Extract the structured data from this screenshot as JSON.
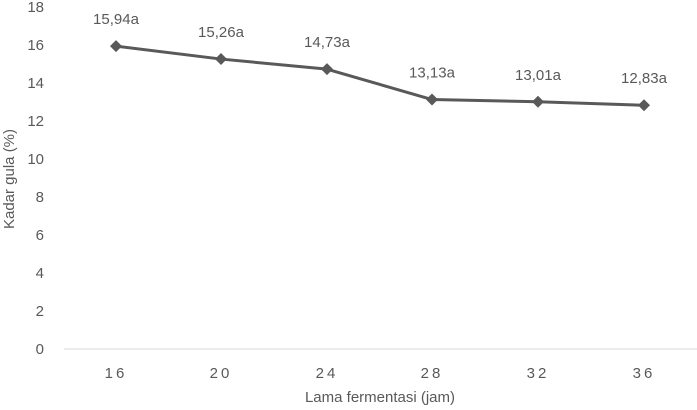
{
  "chart_data": {
    "type": "line",
    "title": "",
    "xlabel": "Lama fermentasi (jam)",
    "ylabel": "Kadar gula (%)",
    "categories": [
      "16",
      "20",
      "24",
      "28",
      "32",
      "36"
    ],
    "series": [
      {
        "values": [
          15.94,
          15.26,
          14.73,
          13.13,
          13.01,
          12.83
        ],
        "data_labels": [
          "15,94a",
          "15,26a",
          "14,73a",
          "13,13a",
          "13,01a",
          "12,83a"
        ],
        "color": "#595959",
        "marker": "diamond"
      }
    ],
    "ylim": [
      0,
      18
    ],
    "yticks": [
      0,
      2,
      4,
      6,
      8,
      10,
      12,
      14,
      16,
      18
    ],
    "grid": false,
    "legend": "none",
    "axis_color": "#d9d9d9",
    "text_color": "#595959"
  }
}
